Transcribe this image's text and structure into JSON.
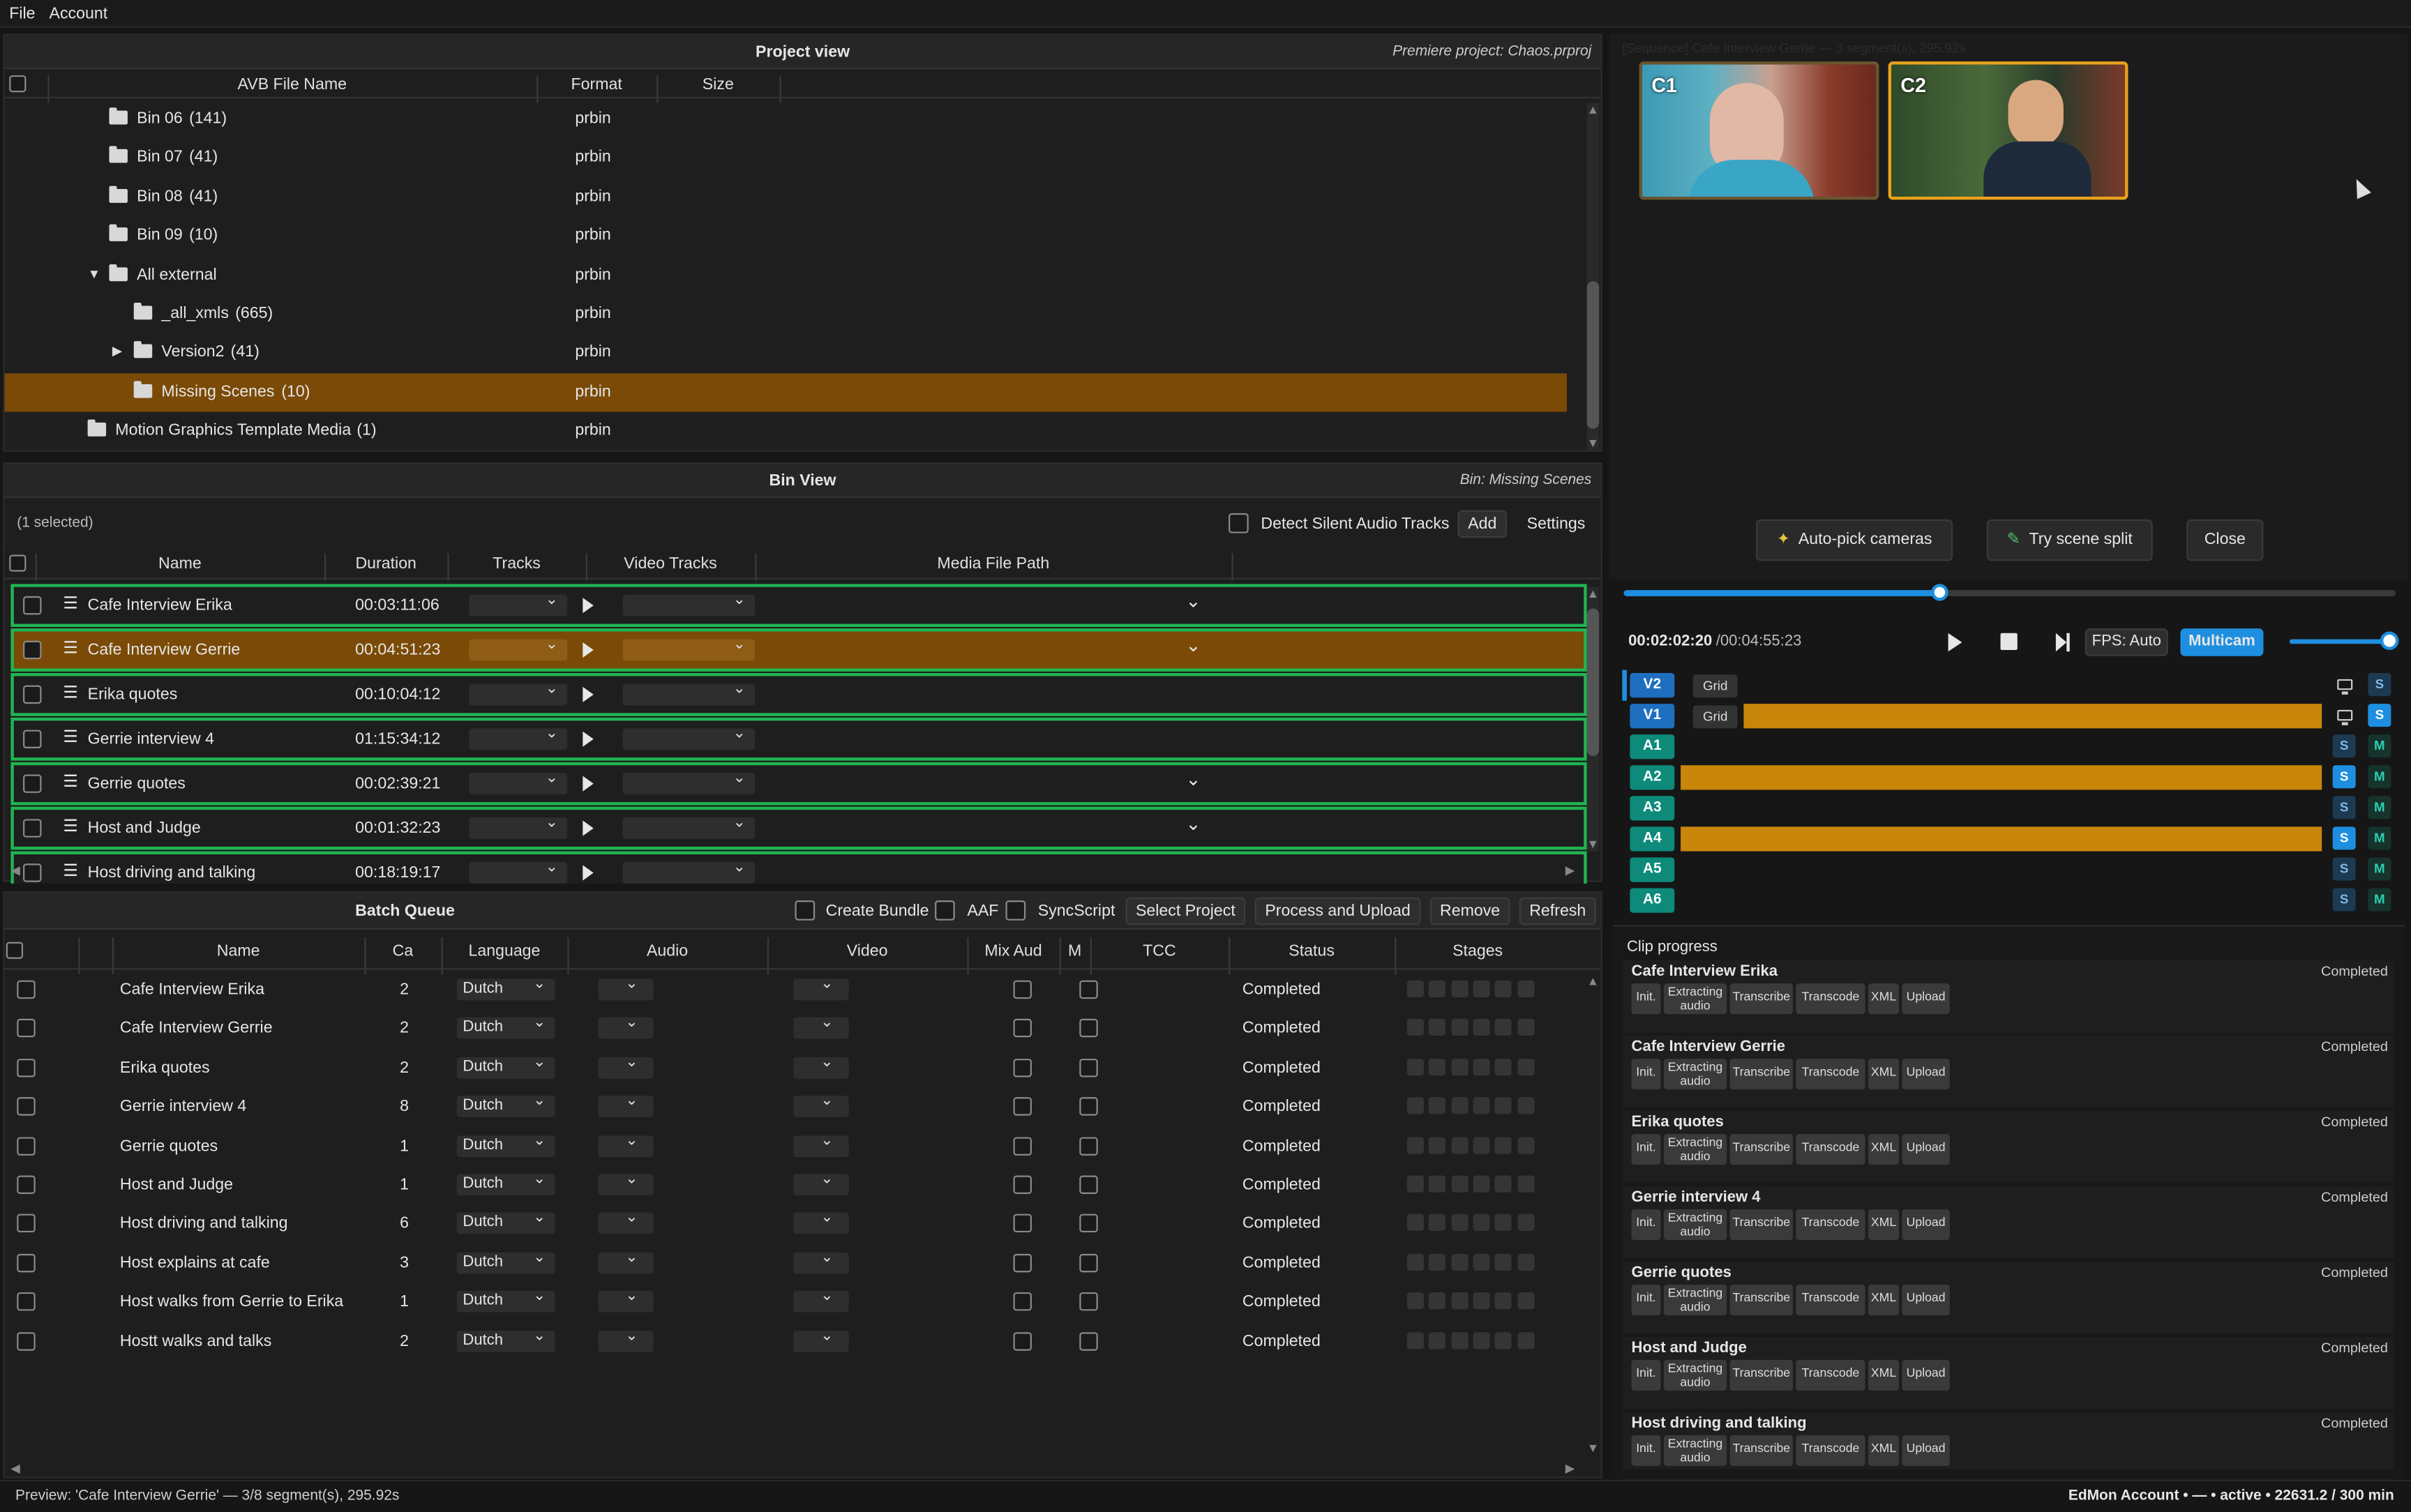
{
  "menu": {
    "file": "File",
    "account": "Account"
  },
  "project_view": {
    "title": "Project view",
    "subtitle": "Premiere project: Chaos.prproj",
    "columns": [
      "AVB File Name",
      "Format",
      "Size"
    ],
    "rows": [
      {
        "name": "Bin 06",
        "count": "(141)",
        "format": "prbin",
        "indent": 1,
        "expander": ""
      },
      {
        "name": "Bin 07",
        "count": "(41)",
        "format": "prbin",
        "indent": 1,
        "expander": ""
      },
      {
        "name": "Bin 08",
        "count": "(41)",
        "format": "prbin",
        "indent": 1,
        "expander": ""
      },
      {
        "name": "Bin 09",
        "count": "(10)",
        "format": "prbin",
        "indent": 1,
        "expander": ""
      },
      {
        "name": "All external",
        "count": "",
        "format": "prbin",
        "indent": 1,
        "expander": "▼"
      },
      {
        "name": "_all_xmls",
        "count": "(665)",
        "format": "prbin",
        "indent": 2,
        "expander": ""
      },
      {
        "name": "Version2",
        "count": "(41)",
        "format": "prbin",
        "indent": 2,
        "expander": "▶"
      },
      {
        "name": "Missing Scenes",
        "count": "(10)",
        "format": "prbin",
        "indent": 2,
        "expander": "",
        "selected": true
      },
      {
        "name": "Motion Graphics Template Media",
        "count": "(1)",
        "format": "prbin",
        "indent": 0,
        "expander": ""
      }
    ]
  },
  "bin_view": {
    "title": "Bin View",
    "subtitle": "Bin: Missing Scenes",
    "selected_count": "(1 selected)",
    "detect_silent": "Detect Silent Audio Tracks",
    "add": "Add",
    "settings": "Settings",
    "columns": [
      "Name",
      "Duration",
      "Tracks",
      "Video Tracks",
      "Media File Path"
    ],
    "rows": [
      {
        "name": "Cafe Interview Erika",
        "duration": "00:03:11:06",
        "path_chevron": true
      },
      {
        "name": "Cafe Interview Gerrie",
        "duration": "00:04:51:23",
        "path_chevron": true,
        "selected": true
      },
      {
        "name": "Erika quotes",
        "duration": "00:10:04:12",
        "path_chevron": false
      },
      {
        "name": "Gerrie interview 4",
        "duration": "01:15:34:12",
        "path_chevron": false
      },
      {
        "name": "Gerrie quotes",
        "duration": "00:02:39:21",
        "path_chevron": true
      },
      {
        "name": "Host and  Judge",
        "duration": "00:01:32:23",
        "path_chevron": true
      },
      {
        "name": "Host driving and talking",
        "duration": "00:18:19:17",
        "path_chevron": false
      }
    ]
  },
  "batch_queue": {
    "title": "Batch Queue",
    "create_bundle": "Create Bundle",
    "aaf": "AAF",
    "syncscript": "SyncScript",
    "select_project": "Select Project",
    "process_upload": "Process and Upload",
    "remove": "Remove",
    "refresh": "Refresh",
    "columns": [
      "Name",
      "Ca",
      "Language",
      "Audio",
      "Video",
      "Mix Aud",
      "M",
      "TCC",
      "Status",
      "Stages"
    ],
    "rows": [
      {
        "name": "Cafe Interview Erika",
        "ca": "2",
        "language": "Dutch",
        "status": "Completed"
      },
      {
        "name": "Cafe Interview Gerrie",
        "ca": "2",
        "language": "Dutch",
        "status": "Completed"
      },
      {
        "name": "Erika quotes",
        "ca": "2",
        "language": "Dutch",
        "status": "Completed"
      },
      {
        "name": "Gerrie interview 4",
        "ca": "8",
        "language": "Dutch",
        "status": "Completed"
      },
      {
        "name": "Gerrie quotes",
        "ca": "1",
        "language": "Dutch",
        "status": "Completed"
      },
      {
        "name": "Host and  Judge",
        "ca": "1",
        "language": "Dutch",
        "status": "Completed"
      },
      {
        "name": "Host driving and talking",
        "ca": "6",
        "language": "Dutch",
        "status": "Completed"
      },
      {
        "name": "Host explains at cafe",
        "ca": "3",
        "language": "Dutch",
        "status": "Completed"
      },
      {
        "name": "Host walks from Gerrie to Erika",
        "ca": "1",
        "language": "Dutch",
        "status": "Completed"
      },
      {
        "name": "Hostt walks and talks",
        "ca": "2",
        "language": "Dutch",
        "status": "Completed"
      }
    ]
  },
  "preview": {
    "header": "[Sequence] Cafe Interview Gerrie — 3 segment(s), 295.92s",
    "cam1": "C1",
    "cam2": "C2",
    "auto_pick": "Auto-pick cameras",
    "scene_split": "Try scene split",
    "close": "Close",
    "playhead_fraction": 0.411,
    "time_current": "00:02:02:20",
    "time_total": "/00:04:55:23",
    "fps": "FPS: Auto",
    "multicam": "Multicam",
    "volume_fraction": 0.95
  },
  "tracks": [
    {
      "label": "V2",
      "kind": "video",
      "grid": "Grid",
      "monitor": true,
      "s": "S",
      "s_on": false,
      "m": "",
      "bar": false
    },
    {
      "label": "V1",
      "kind": "video",
      "grid": "Grid",
      "monitor": true,
      "s": "S",
      "s_on": true,
      "m": "",
      "bar": true
    },
    {
      "label": "A1",
      "kind": "audio",
      "s": "S",
      "s_on": false,
      "m": "M",
      "bar": false
    },
    {
      "label": "A2",
      "kind": "audio",
      "s": "S",
      "s_on": true,
      "m": "M",
      "bar": true
    },
    {
      "label": "A3",
      "kind": "audio",
      "s": "S",
      "s_on": false,
      "m": "M",
      "bar": false
    },
    {
      "label": "A4",
      "kind": "audio",
      "s": "S",
      "s_on": true,
      "m": "M",
      "bar": true
    },
    {
      "label": "A5",
      "kind": "audio",
      "s": "S",
      "s_on": false,
      "m": "M",
      "bar": false
    },
    {
      "label": "A6",
      "kind": "audio",
      "s": "S",
      "s_on": false,
      "m": "M",
      "bar": false
    }
  ],
  "clip_progress": {
    "title": "Clip progress",
    "stages": [
      "Init.",
      "Extracting audio",
      "Transcribe",
      "Transcode",
      "XML",
      "Upload"
    ],
    "clips": [
      {
        "name": "Cafe Interview Erika",
        "status": "Completed"
      },
      {
        "name": "Cafe Interview Gerrie",
        "status": "Completed"
      },
      {
        "name": "Erika quotes",
        "status": "Completed"
      },
      {
        "name": "Gerrie interview 4",
        "status": "Completed"
      },
      {
        "name": "Gerrie quotes",
        "status": "Completed"
      },
      {
        "name": "Host and  Judge",
        "status": "Completed"
      },
      {
        "name": "Host driving and talking",
        "status": "Completed"
      }
    ]
  },
  "status_bar": {
    "left": "Preview: 'Cafe Interview Gerrie' — 3/8 segment(s), 295.92s",
    "right": "EdMon Account • — • active • 22631.2 / 300 min"
  },
  "colors": {
    "accent": "#1e8fe0",
    "selection": "#7a4a06",
    "row_border": "#1fb552",
    "track_bar": "#c8860b",
    "teal": "#0d8a7a"
  }
}
